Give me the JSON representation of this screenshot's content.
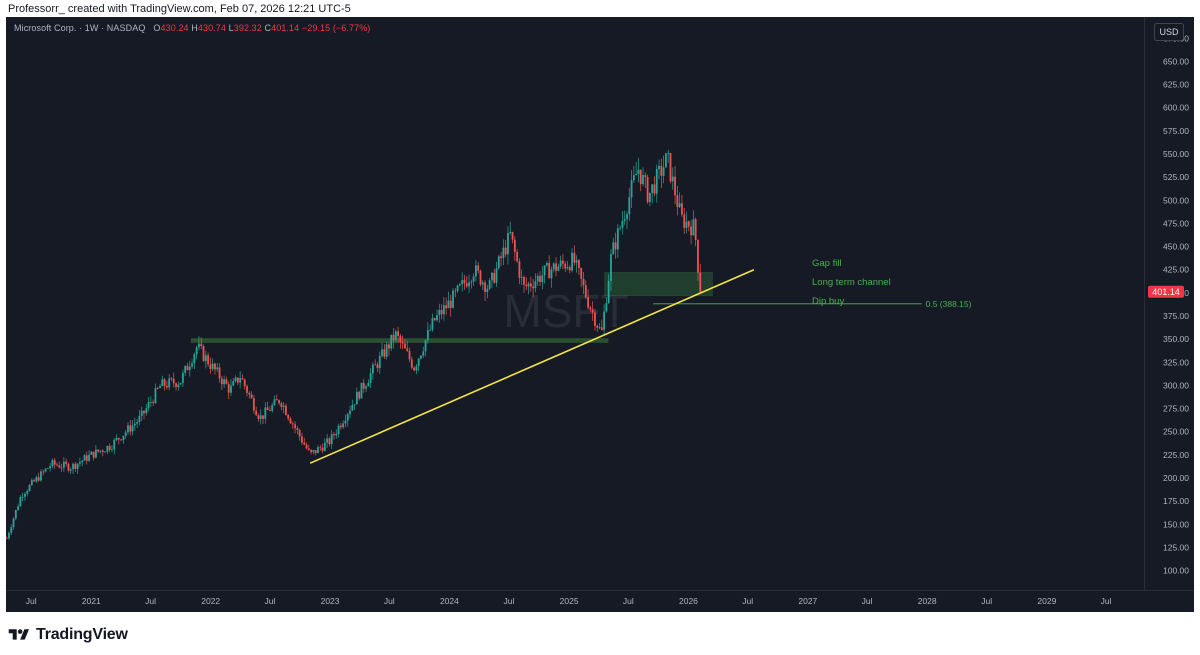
{
  "header": {
    "credit": "Professorr_ created with TradingView.com, Feb 07, 2026 12:21 UTC-5"
  },
  "legend": {
    "symbol": "Microsoft Corp. · 1W · NASDAQ",
    "open_label": "O",
    "open": "430.24",
    "high_label": "H",
    "high": "430.74",
    "low_label": "L",
    "low": "392.32",
    "close_label": "C",
    "close": "401.14",
    "change": "−29.15 (−6.77%)"
  },
  "currency": "USD",
  "watermark": "MSFT",
  "annotations": {
    "gap_fill": "Gap fill",
    "long_term_channel": "Long term channel",
    "dip_buy": "Dip buy",
    "fib_label": "0.5 (388.15)"
  },
  "last_price_label": "401.14",
  "brand": {
    "name": "TradingView"
  },
  "colors": {
    "background": "#161a25",
    "up": "#26a69a",
    "down": "#ef5350",
    "trendline": "#f5e642",
    "zone": "#1e4d2b",
    "annotation_text": "#4caf50",
    "last_price": "#f23645"
  },
  "chart_data": {
    "type": "candlestick",
    "symbol": "MSFT",
    "interval": "1W",
    "exchange": "NASDAQ",
    "y_ticks": [
      100,
      125,
      150,
      175,
      200,
      225,
      250,
      275,
      300,
      325,
      350,
      375,
      400,
      425,
      450,
      475,
      500,
      525,
      550,
      575,
      600,
      625,
      650,
      675
    ],
    "y_tick_labels": [
      "100.00",
      "125.00",
      "150.00",
      "175.00",
      "200.00",
      "225.00",
      "250.00",
      "275.00",
      "300.00",
      "325.00",
      "350.00",
      "375.00",
      "400.00",
      "425.00",
      "450.00",
      "475.00",
      "500.00",
      "525.00",
      "550.00",
      "575.00",
      "600.00",
      "625.00",
      "650.00",
      "675.00"
    ],
    "ylim": [
      79,
      698
    ],
    "xlim": [
      "2020-04-15",
      "2029-10-25"
    ],
    "x_ticks": [
      {
        "date": "2020-07-01",
        "label": "Jul"
      },
      {
        "date": "2021-01-01",
        "label": "2021"
      },
      {
        "date": "2021-07-01",
        "label": "Jul"
      },
      {
        "date": "2022-01-01",
        "label": "2022"
      },
      {
        "date": "2022-07-01",
        "label": "Jul"
      },
      {
        "date": "2023-01-01",
        "label": "2023"
      },
      {
        "date": "2023-07-01",
        "label": "Jul"
      },
      {
        "date": "2024-01-01",
        "label": "2024"
      },
      {
        "date": "2024-07-01",
        "label": "Jul"
      },
      {
        "date": "2025-01-01",
        "label": "2025"
      },
      {
        "date": "2025-07-01",
        "label": "Jul"
      },
      {
        "date": "2026-01-01",
        "label": "2026"
      },
      {
        "date": "2026-07-01",
        "label": "Jul"
      },
      {
        "date": "2027-01-01",
        "label": "2027"
      },
      {
        "date": "2027-07-01",
        "label": "Jul"
      },
      {
        "date": "2028-01-01",
        "label": "2028"
      },
      {
        "date": "2028-07-01",
        "label": "Jul"
      },
      {
        "date": "2029-01-01",
        "label": "2029"
      },
      {
        "date": "2029-07-01",
        "label": "Jul"
      }
    ],
    "price_path": [
      [
        "2020-04-17",
        135
      ],
      [
        "2020-06-01",
        182
      ],
      [
        "2020-09-01",
        215
      ],
      [
        "2020-11-01",
        212
      ],
      [
        "2021-01-01",
        225
      ],
      [
        "2021-03-01",
        235
      ],
      [
        "2021-06-01",
        265
      ],
      [
        "2021-08-01",
        300
      ],
      [
        "2021-10-01",
        305
      ],
      [
        "2021-11-20",
        342
      ],
      [
        "2022-01-10",
        318
      ],
      [
        "2022-03-01",
        295
      ],
      [
        "2022-04-01",
        310
      ],
      [
        "2022-06-01",
        265
      ],
      [
        "2022-08-01",
        285
      ],
      [
        "2022-09-15",
        255
      ],
      [
        "2022-11-01",
        225
      ],
      [
        "2023-01-01",
        240
      ],
      [
        "2023-03-01",
        275
      ],
      [
        "2023-05-01",
        310
      ],
      [
        "2023-07-20",
        355
      ],
      [
        "2023-09-15",
        320
      ],
      [
        "2023-11-15",
        370
      ],
      [
        "2024-01-15",
        395
      ],
      [
        "2024-03-15",
        425
      ],
      [
        "2024-05-01",
        405
      ],
      [
        "2024-07-05",
        462
      ],
      [
        "2024-08-15",
        405
      ],
      [
        "2024-11-01",
        425
      ],
      [
        "2025-01-15",
        435
      ],
      [
        "2025-03-01",
        390
      ],
      [
        "2025-04-10",
        355
      ],
      [
        "2025-05-10",
        440
      ],
      [
        "2025-07-31",
        535
      ],
      [
        "2025-09-01",
        505
      ],
      [
        "2025-10-28",
        545
      ],
      [
        "2025-12-10",
        480
      ],
      [
        "2026-01-20",
        470
      ],
      [
        "2026-02-06",
        401.14
      ]
    ],
    "drawings": {
      "trendline": {
        "from": [
          "2022-11-01",
          216
        ],
        "to": [
          "2026-07-20",
          425
        ]
      },
      "resistance_zone": {
        "from": "2021-11-01",
        "to": "2025-05-01",
        "top": 351,
        "bottom": 346
      },
      "gap_zone": {
        "from": "2025-04-20",
        "to": "2026-03-15",
        "top": 422,
        "bottom": 397
      },
      "fib_level": {
        "from": "2025-09-15",
        "to": "2027-12-15",
        "price": 388.15,
        "label": "0.5 (388.15)"
      }
    },
    "last_price": 401.14
  }
}
